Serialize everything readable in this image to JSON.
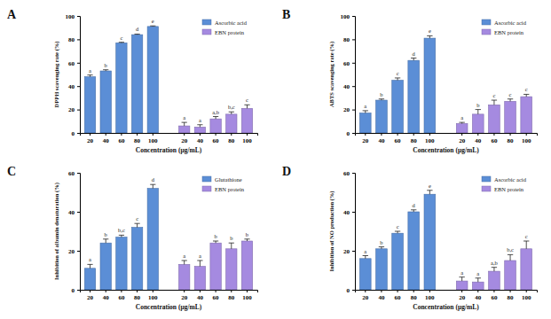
{
  "chart_data": [
    {
      "type": "bar",
      "title": "A",
      "x_label": "Concentration (μg/mL)",
      "y_label": "DPPH scavenging rate (%)",
      "categories": [
        "20",
        "40",
        "60",
        "80",
        "100",
        "20",
        "40",
        "60",
        "80",
        "100"
      ],
      "ylim": [
        0,
        100
      ],
      "yticks": [
        0,
        20,
        40,
        60,
        80,
        100
      ],
      "grid": false,
      "legend": "upper right",
      "series": [
        {
          "name": "Ascorbic acid",
          "color": "#5b8ed6",
          "values": [
            48,
            53,
            77,
            84,
            91,
            null,
            null,
            null,
            null,
            null
          ],
          "errors": [
            1.5,
            1,
            0.5,
            0.5,
            0.5,
            null,
            null,
            null,
            null,
            null
          ],
          "letters": [
            "a",
            "b",
            "c",
            "d",
            "e",
            null,
            null,
            null,
            null,
            null
          ]
        },
        {
          "name": "EBN protein",
          "color": "#a58ae0",
          "values": [
            null,
            null,
            null,
            null,
            null,
            6,
            5,
            12,
            16,
            21
          ],
          "errors": [
            null,
            null,
            null,
            null,
            null,
            3,
            2,
            2,
            2,
            3
          ],
          "letters": [
            null,
            null,
            null,
            null,
            null,
            "a",
            "a",
            "a,b",
            "b,c",
            "c"
          ]
        }
      ]
    },
    {
      "type": "bar",
      "title": "B",
      "x_label": "Concentration (μg/mL)",
      "y_label": "ABTS scavenging rate (%)",
      "categories": [
        "20",
        "40",
        "60",
        "80",
        "100",
        "20",
        "40",
        "60",
        "80",
        "100"
      ],
      "ylim": [
        0,
        100
      ],
      "yticks": [
        0,
        20,
        40,
        60,
        80,
        100
      ],
      "grid": false,
      "legend": "upper right",
      "series": [
        {
          "name": "Ascorbic acid",
          "color": "#5b8ed6",
          "values": [
            17,
            28,
            45,
            62,
            81,
            null,
            null,
            null,
            null,
            null
          ],
          "errors": [
            2,
            1,
            2,
            2,
            2,
            null,
            null,
            null,
            null,
            null
          ],
          "letters": [
            "a",
            "b",
            "c",
            "d",
            "e",
            null,
            null,
            null,
            null,
            null
          ]
        },
        {
          "name": "EBN protein",
          "color": "#a58ae0",
          "values": [
            null,
            null,
            null,
            null,
            null,
            8,
            16,
            24,
            27,
            31
          ],
          "errors": [
            null,
            null,
            null,
            null,
            null,
            1,
            4,
            4,
            2,
            2
          ],
          "letters": [
            null,
            null,
            null,
            null,
            null,
            "a",
            "b",
            "c",
            "c",
            "c"
          ]
        }
      ]
    },
    {
      "type": "bar",
      "title": "C",
      "x_label": "Concentration (μg/mL)",
      "y_label": "Inhibition of albumin denaturation (%)",
      "categories": [
        "20",
        "40",
        "60",
        "80",
        "100",
        "20",
        "40",
        "60",
        "80",
        "100"
      ],
      "ylim": [
        0,
        60
      ],
      "yticks": [
        0,
        20,
        40,
        60
      ],
      "grid": false,
      "legend": "upper right",
      "series": [
        {
          "name": "Glutathione",
          "color": "#5b8ed6",
          "values": [
            11,
            24,
            27,
            32,
            52,
            null,
            null,
            null,
            null,
            null
          ],
          "errors": [
            2,
            2,
            1,
            2,
            2,
            null,
            null,
            null,
            null,
            null
          ],
          "letters": [
            "a",
            "b",
            "b,c",
            "c",
            "d",
            null,
            null,
            null,
            null,
            null
          ]
        },
        {
          "name": "EBN protein",
          "color": "#a58ae0",
          "values": [
            null,
            null,
            null,
            null,
            null,
            13,
            12,
            24,
            21,
            25
          ],
          "errors": [
            null,
            null,
            null,
            null,
            null,
            2,
            3,
            1,
            3,
            1
          ],
          "letters": [
            null,
            null,
            null,
            null,
            null,
            "a",
            "a",
            "b",
            "b",
            "b"
          ]
        }
      ]
    },
    {
      "type": "bar",
      "title": "D",
      "x_label": "Concentration (μg/mL)",
      "y_label": "Inhibition of NO production (%)",
      "categories": [
        "20",
        "40",
        "60",
        "80",
        "100",
        "20",
        "40",
        "60",
        "80",
        "100"
      ],
      "ylim": [
        0,
        60
      ],
      "yticks": [
        0,
        20,
        40,
        60
      ],
      "grid": false,
      "legend": "upper right",
      "series": [
        {
          "name": "Ascorbic acid",
          "color": "#5b8ed6",
          "values": [
            16,
            21,
            29,
            40,
            49,
            null,
            null,
            null,
            null,
            null
          ],
          "errors": [
            1.5,
            1,
            1,
            1,
            2,
            null,
            null,
            null,
            null,
            null
          ],
          "letters": [
            "a",
            "b",
            "c",
            "d",
            "e",
            null,
            null,
            null,
            null,
            null
          ]
        },
        {
          "name": "EBN protein",
          "color": "#a58ae0",
          "values": [
            null,
            null,
            null,
            null,
            null,
            4.5,
            4,
            9.5,
            15,
            21
          ],
          "errors": [
            null,
            null,
            null,
            null,
            null,
            2,
            2,
            2,
            3,
            4
          ],
          "letters": [
            null,
            null,
            null,
            null,
            null,
            "a",
            "a",
            "a,b",
            "b,c",
            "c"
          ]
        }
      ]
    }
  ]
}
